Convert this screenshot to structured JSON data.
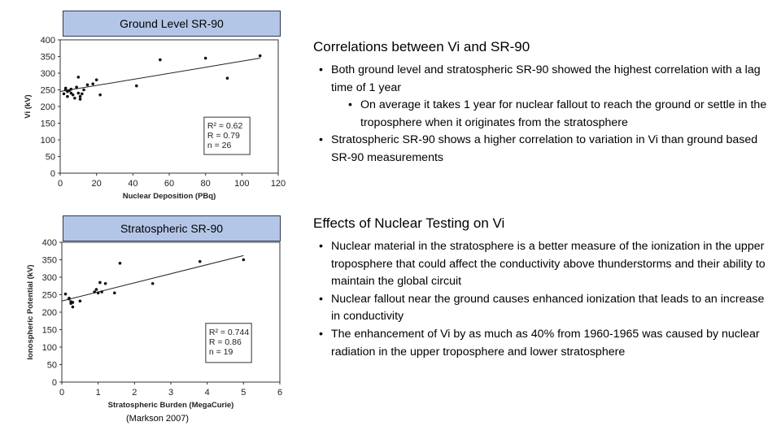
{
  "left": {
    "box1_label": "Ground Level SR-90",
    "box2_label": "Stratospheric SR-90",
    "citation": "(Markson 2007)"
  },
  "chart_data": [
    {
      "type": "scatter",
      "title": "",
      "xlabel": "Nuclear Deposition (PBq)",
      "ylabel": "Vi (kV)",
      "xlim": [
        0,
        120
      ],
      "ylim": [
        0,
        400
      ],
      "xticks": [
        0,
        20,
        40,
        60,
        80,
        100,
        120
      ],
      "yticks": [
        0,
        50,
        100,
        150,
        200,
        250,
        300,
        350,
        400
      ],
      "stats": [
        "R² = 0.62",
        "R = 0.79",
        "n = 26"
      ],
      "fit_line": {
        "x": [
          0,
          110
        ],
        "y": [
          245,
          345
        ]
      },
      "points": {
        "x": [
          2,
          3,
          3,
          4,
          4,
          5,
          6,
          6,
          7,
          8,
          9,
          10,
          10,
          11,
          11,
          12,
          13,
          15,
          18,
          20,
          22,
          42,
          55,
          80,
          92,
          110
        ],
        "y": [
          238,
          250,
          255,
          230,
          245,
          248,
          252,
          240,
          235,
          225,
          258,
          240,
          288,
          230,
          222,
          238,
          250,
          265,
          268,
          280,
          235,
          262,
          340,
          345,
          285,
          352
        ]
      }
    },
    {
      "type": "scatter",
      "title": "",
      "xlabel": "Stratospheric Burden (MegaCurie)",
      "ylabel": "Ionospheric Potential (kV)",
      "xlim": [
        0,
        6
      ],
      "ylim": [
        0,
        400
      ],
      "xticks": [
        0,
        1,
        2,
        3,
        4,
        5,
        6
      ],
      "yticks": [
        0,
        50,
        100,
        150,
        200,
        250,
        300,
        350,
        400
      ],
      "stats": [
        "R² = 0.744",
        "R = 0.86",
        "n = 19"
      ],
      "fit_line": {
        "x": [
          0,
          5
        ],
        "y": [
          232,
          362
        ]
      },
      "points": {
        "x": [
          0.1,
          0.2,
          0.25,
          0.25,
          0.3,
          0.5,
          0.9,
          0.95,
          1.0,
          1.05,
          1.1,
          1.2,
          1.45,
          1.6,
          2.5,
          3.8,
          5.0,
          0.3,
          0.2
        ],
        "y": [
          252,
          240,
          225,
          230,
          215,
          232,
          258,
          265,
          255,
          285,
          258,
          282,
          255,
          340,
          282,
          345,
          350,
          228,
          238
        ]
      }
    }
  ],
  "panel1": {
    "heading": "Correlations between Vi and SR-90",
    "bullets": [
      "Both ground level and stratospheric SR-90 showed the highest correlation with a lag time of 1 year",
      "Stratospheric SR-90 shows a higher correlation to variation in Vi than ground based SR-90 measurements"
    ],
    "sub_bullet": "On average it takes 1 year for nuclear fallout to reach the ground or settle in the troposphere when it originates from the stratosphere"
  },
  "panel2": {
    "heading": "Effects of Nuclear Testing on Vi",
    "bullets": [
      "Nuclear material in the stratosphere is a better measure of the ionization in the upper troposphere that could affect the conductivity above thunderstorms and their ability to maintain the global circuit",
      "Nuclear fallout near the ground causes enhanced ionization that leads to an increase in conductivity",
      "The enhancement of Vi by as much as 40% from 1960-1965 was caused by nuclear radiation in the upper troposphere and lower stratosphere"
    ]
  }
}
